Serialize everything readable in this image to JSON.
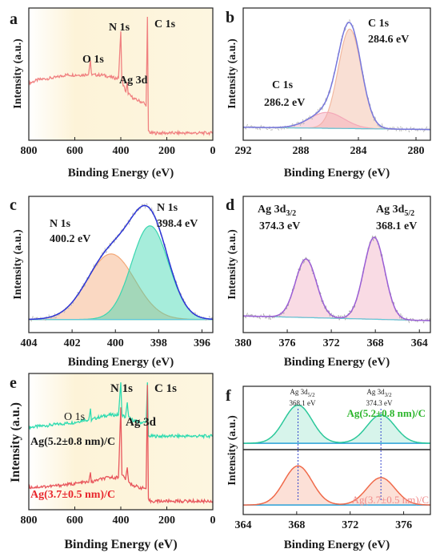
{
  "figure": {
    "panels": [
      {
        "id": "a",
        "letter": "a",
        "type": "line",
        "xlabel": "Binding Energy (eV)",
        "ylabel": "Intensity (a.u.)",
        "xlim": [
          800,
          0
        ],
        "xticks": [
          800,
          600,
          400,
          200,
          0
        ],
        "background": "#fdf6dc",
        "annotations": [
          {
            "text": "O 1s",
            "x": 540,
            "y": 0.62
          },
          {
            "text": "N 1s",
            "x": 400,
            "y": 0.9
          },
          {
            "text": "C 1s",
            "x": 270,
            "y": 0.92
          },
          {
            "text": "Ag 3d",
            "x": 350,
            "y": 0.44
          }
        ]
      },
      {
        "id": "b",
        "letter": "b",
        "type": "line",
        "xlabel": "Binding Energy (eV)",
        "ylabel": "Intensity (a.u.)",
        "xlim": [
          292,
          279
        ],
        "xticks": [
          292,
          288,
          284,
          280
        ],
        "annotations": [
          {
            "text": "C 1s",
            "x": 288.8,
            "y": 0.44
          },
          {
            "text": "286.2 eV",
            "x": 288.8,
            "y": 0.27
          },
          {
            "text": "C 1s",
            "x": 284.2,
            "y": 0.93
          },
          {
            "text": "284.6 eV",
            "x": 283.6,
            "y": 0.78
          }
        ]
      },
      {
        "id": "c",
        "letter": "c",
        "type": "line",
        "xlabel": "Binding Energy (eV)",
        "ylabel": "Intensity (a.u.)",
        "xlim": [
          404,
          395.5
        ],
        "xticks": [
          404,
          402,
          400,
          398,
          396
        ],
        "annotations": [
          {
            "text": "N 1s",
            "x": 402.1,
            "y": 0.74
          },
          {
            "text": "400.2 eV",
            "x": 402.1,
            "y": 0.58
          },
          {
            "text": "N 1s",
            "x": 397.8,
            "y": 0.93
          },
          {
            "text": "398.4 eV",
            "x": 397.9,
            "y": 0.78
          }
        ]
      },
      {
        "id": "d",
        "letter": "d",
        "type": "line",
        "xlabel": "Binding Energy (eV)",
        "ylabel": "Intensity (a.u.)",
        "xlim": [
          380,
          363
        ],
        "xticks": [
          380,
          376,
          372,
          368,
          364
        ],
        "annotations": [
          {
            "text": "Ag 3d3/2",
            "x": 376.5,
            "y": 0.93
          },
          {
            "text": "374.3 eV",
            "x": 376.3,
            "y": 0.78
          },
          {
            "text": "Ag 3d5/2",
            "x": 366.7,
            "y": 0.93
          },
          {
            "text": "368.1 eV",
            "x": 366.6,
            "y": 0.78
          }
        ]
      },
      {
        "id": "e",
        "letter": "e",
        "type": "line",
        "xlabel": "Binding Energy (eV)",
        "ylabel": "Intensity (a.u.)",
        "xlim": [
          800,
          0
        ],
        "xticks": [
          800,
          600,
          400,
          200,
          0
        ],
        "background": "#fdf6dc",
        "annotations": [
          {
            "text": "O 1s",
            "x": 555,
            "y": 0.88
          },
          {
            "text": "N 1s",
            "x": 400,
            "y": 0.97
          },
          {
            "text": "C 1s",
            "x": 245,
            "y": 0.97
          },
          {
            "text": "Ag 3d",
            "x": 350,
            "y": 0.72
          }
        ],
        "series_labels": [
          {
            "text": "Ag(5.2±0.8 nm)/C",
            "color": "#111111"
          },
          {
            "text": "Ag(3.7±0.5 nm)/C",
            "color": "#e8262c"
          }
        ]
      },
      {
        "id": "f",
        "letter": "f",
        "type": "line",
        "xlabel": "Binding Energy (eV)",
        "ylabel": "Intensity (a.u.)",
        "xlim": [
          364,
          378
        ],
        "xticks": [
          364,
          368,
          372,
          376
        ],
        "annotations": [
          {
            "text": "Ag 3d5/2",
            "x": 368.1,
            "y": 0.97
          },
          {
            "text": "368.1 eV",
            "x": 368.1,
            "y": 0.89
          },
          {
            "text": "Ag 3d3/2",
            "x": 374.3,
            "y": 0.97
          },
          {
            "text": "374.3 eV",
            "x": 374.3,
            "y": 0.89
          }
        ],
        "series_labels": [
          {
            "text": "Ag(5.2±0.8 nm)/C",
            "color": "#2bb52b"
          },
          {
            "text": "Ag(3.7±0.5 nm)/C",
            "color": "#f08a8a"
          }
        ]
      }
    ]
  },
  "chart_data": [
    {
      "panel": "a",
      "type": "line",
      "xlabel": "Binding Energy (eV)",
      "ylabel": "Intensity (a.u.)",
      "xlim": [
        800,
        0
      ],
      "series": [
        {
          "color": "#f08080",
          "x": [
            800,
            760,
            720,
            680,
            640,
            600,
            560,
            540,
            532,
            528,
            520,
            480,
            440,
            410,
            400,
            396,
            390,
            378,
            372,
            368,
            360,
            340,
            300,
            290,
            284,
            280,
            270,
            200,
            100,
            0
          ],
          "y": [
            0.43,
            0.46,
            0.47,
            0.48,
            0.5,
            0.5,
            0.5,
            0.51,
            0.62,
            0.51,
            0.5,
            0.5,
            0.48,
            0.47,
            0.86,
            0.48,
            0.42,
            0.36,
            0.44,
            0.35,
            0.33,
            0.3,
            0.27,
            0.24,
            0.98,
            0.04,
            0.02,
            0.02,
            0.02,
            0.02
          ]
        }
      ]
    },
    {
      "panel": "b",
      "type": "line",
      "xlabel": "Binding Energy (eV)",
      "ylabel": "Intensity (a.u.)",
      "xlim": [
        292,
        279
      ],
      "peaks": [
        {
          "label": "C 1s",
          "center": 284.6,
          "height": 0.88,
          "width": 0.8,
          "color": "#f2b8a0"
        },
        {
          "label": "C 1s",
          "center": 286.2,
          "height": 0.14,
          "width": 1.2,
          "color": "#f3a8b8"
        }
      ],
      "baseline": [
        0.03,
        0.01
      ],
      "envelope_color": "#7777dd",
      "raw_color": "#bbbbbb"
    },
    {
      "panel": "c",
      "type": "line",
      "xlabel": "Binding Energy (eV)",
      "ylabel": "Intensity (a.u.)",
      "xlim": [
        404,
        395.5
      ],
      "peaks": [
        {
          "label": "N 1s",
          "center": 400.2,
          "height": 0.56,
          "width": 1.1,
          "color": "#f3a878"
        },
        {
          "label": "N 1s",
          "center": 398.4,
          "height": 0.8,
          "width": 0.85,
          "color": "#3ad6b0"
        }
      ],
      "baseline": [
        0.03,
        0.03
      ],
      "envelope_color": "#2a33d6",
      "raw_color": "#bbbbbb"
    },
    {
      "panel": "d",
      "type": "line",
      "xlabel": "Binding Energy (eV)",
      "ylabel": "Intensity (a.u.)",
      "xlim": [
        380,
        363
      ],
      "peaks": [
        {
          "label": "Ag 3d3/2",
          "center": 374.3,
          "height": 0.5,
          "width": 0.95,
          "color": "#f2b0c4"
        },
        {
          "label": "Ag 3d5/2",
          "center": 368.1,
          "height": 0.7,
          "width": 0.95,
          "color": "#f2b0c4"
        }
      ],
      "baseline": [
        0.06,
        0.02
      ],
      "envelope_color": "#9b5fd6",
      "raw_color": "#aaaaaa"
    },
    {
      "panel": "e",
      "type": "line",
      "xlabel": "Binding Energy (eV)",
      "ylabel": "Intensity (a.u.)",
      "xlim": [
        800,
        0
      ],
      "series": [
        {
          "name": "Ag(5.2±0.8 nm)/C",
          "color": "#2edbb0",
          "x": [
            800,
            700,
            600,
            560,
            540,
            532,
            528,
            500,
            450,
            410,
            400,
            395,
            380,
            372,
            366,
            350,
            320,
            290,
            284,
            280,
            270,
            200,
            100,
            0
          ],
          "y": [
            0.62,
            0.64,
            0.66,
            0.68,
            0.68,
            0.76,
            0.68,
            0.7,
            0.72,
            0.72,
            0.98,
            0.72,
            0.7,
            0.82,
            0.7,
            0.68,
            0.66,
            0.66,
            0.98,
            0.55,
            0.55,
            0.55,
            0.55,
            0.55
          ]
        },
        {
          "name": "Ag(3.7±0.5 nm)/C",
          "color": "#e8565c",
          "x": [
            800,
            700,
            600,
            560,
            540,
            532,
            528,
            500,
            450,
            410,
            400,
            395,
            380,
            372,
            366,
            350,
            320,
            290,
            284,
            280,
            270,
            200,
            100,
            0
          ],
          "y": [
            0.14,
            0.15,
            0.17,
            0.18,
            0.18,
            0.26,
            0.18,
            0.2,
            0.22,
            0.22,
            0.78,
            0.25,
            0.2,
            0.3,
            0.18,
            0.16,
            0.14,
            0.13,
            0.96,
            0.04,
            0.03,
            0.03,
            0.03,
            0.03
          ]
        }
      ]
    },
    {
      "panel": "f",
      "type": "line",
      "xlabel": "Binding Energy (eV)",
      "ylabel": "Intensity (a.u.)",
      "xlim": [
        364,
        378
      ],
      "series": [
        {
          "name": "Ag(5.2±0.8 nm)/C",
          "color": "#2bc89a",
          "fill": "#c6efe2",
          "peaks": [
            {
              "center": 368.1,
              "height": 0.78
            },
            {
              "center": 374.3,
              "height": 0.58
            }
          ],
          "width": 1.05,
          "baseline": 0.08
        },
        {
          "name": "Ag(3.7±0.5 nm)/C",
          "color": "#f06a4a",
          "fill": "#fbd3c6",
          "peaks": [
            {
              "center": 368.1,
              "height": 0.8
            },
            {
              "center": 374.3,
              "height": 0.56
            }
          ],
          "width": 1.05,
          "baseline": 0.08
        }
      ],
      "markers": [
        368.1,
        374.3
      ],
      "marker_color": "#3344cc"
    }
  ]
}
